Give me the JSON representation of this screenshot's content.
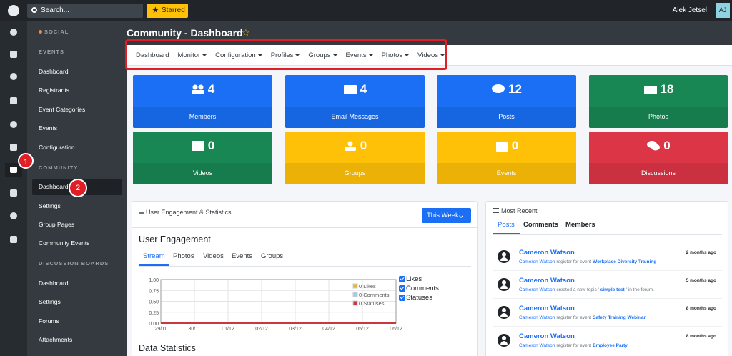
{
  "topbar": {
    "search": "Search...",
    "starred": "Starred",
    "user": "Alek Jetsel",
    "initials": "AJ"
  },
  "rail_badge": "1",
  "sidebar": {
    "sections": [
      {
        "title": "SOCIAL",
        "items": []
      },
      {
        "title": "EVENTS",
        "items": [
          "Dashboard",
          "Registrants",
          "Event Categories",
          "Events",
          "Configuration"
        ]
      },
      {
        "title": "COMMUNITY",
        "items": [
          "Dashboard",
          "Settings",
          "Group Pages",
          "Community Events"
        ]
      },
      {
        "title": "DISCUSSION BOARDS",
        "items": [
          "Dashboard",
          "Settings",
          "Forums",
          "Attachments"
        ]
      }
    ],
    "badge": "2"
  },
  "page_title": "Community - Dashboard",
  "nav": [
    {
      "label": "Dashboard",
      "dropdown": false
    },
    {
      "label": "Monitor",
      "dropdown": true
    },
    {
      "label": "Configuration",
      "dropdown": true
    },
    {
      "label": "Profiles",
      "dropdown": true
    },
    {
      "label": "Groups",
      "dropdown": true
    },
    {
      "label": "Events",
      "dropdown": true
    },
    {
      "label": "Photos",
      "dropdown": true
    },
    {
      "label": "Videos",
      "dropdown": true
    }
  ],
  "tiles": [
    {
      "value": 4,
      "label": "Members",
      "color": "#1a6ff5"
    },
    {
      "value": 4,
      "label": "Email Messages",
      "color": "#1a6ff5"
    },
    {
      "value": 12,
      "label": "Posts",
      "color": "#1a6ff5"
    },
    {
      "value": 18,
      "label": "Photos",
      "color": "#198754"
    },
    {
      "value": 0,
      "label": "Videos",
      "color": "#198754"
    },
    {
      "value": 0,
      "label": "Groups",
      "color": "#ffc107"
    },
    {
      "value": 0,
      "label": "Events",
      "color": "#ffc107"
    },
    {
      "value": 0,
      "label": "Discussions",
      "color": "#dc3545"
    }
  ],
  "engagement": {
    "title": "User Engagement & Statistics",
    "period": "This Week",
    "heading": "User Engagement",
    "tabs": [
      "Stream",
      "Photos",
      "Videos",
      "Events",
      "Groups"
    ],
    "chart": {
      "type": "line",
      "x": [
        "29/11",
        "30/11",
        "01/12",
        "02/12",
        "03/12",
        "04/12",
        "05/12",
        "06/12"
      ],
      "ylim": [
        0,
        1
      ],
      "yticks": [
        {
          "value": 0,
          "label": "0.00"
        },
        {
          "value": 0.25,
          "label": "0.25"
        },
        {
          "value": 0.5,
          "label": "0.50"
        },
        {
          "value": 0.75,
          "label": "0.75"
        },
        {
          "value": 1,
          "label": "1.00"
        }
      ],
      "series": [
        {
          "name": "Likes",
          "legend_label": "0 Likes",
          "color": "#e8b53a",
          "values": [
            0,
            0,
            0,
            0,
            0,
            0,
            0,
            0
          ]
        },
        {
          "name": "Comments",
          "legend_label": "0 Comments",
          "color": "#a8c8e8",
          "values": [
            0,
            0,
            0,
            0,
            0,
            0,
            0,
            0
          ]
        },
        {
          "name": "Statuses",
          "legend_label": "0 Statuses",
          "color": "#c8383f",
          "values": [
            0,
            0,
            0,
            0,
            0,
            0,
            0,
            0
          ]
        }
      ]
    },
    "footer": "Data Statistics"
  },
  "recent": {
    "title": "Most Recent",
    "tabs": [
      "Posts",
      "Comments",
      "Members"
    ],
    "items": [
      {
        "name": "Cameron Watson",
        "time": "2 months ago",
        "actor": "Cameron Watson",
        "action": "register for event",
        "target": "Workplace Diversity Training"
      },
      {
        "name": "Cameron Watson",
        "time": "5 months ago",
        "actor": "Cameron Watson",
        "action": "created a new topic '",
        "target": " simple test",
        "suffix": "' in the forum."
      },
      {
        "name": "Cameron Watson",
        "time": "8 months ago",
        "actor": "Cameron Watson",
        "action": "register for event",
        "target": "Safety Training Webinar"
      },
      {
        "name": "Cameron Watson",
        "time": "8 months ago",
        "actor": "Cameron Watson",
        "action": "register for event",
        "target": "Employee Party"
      }
    ]
  }
}
